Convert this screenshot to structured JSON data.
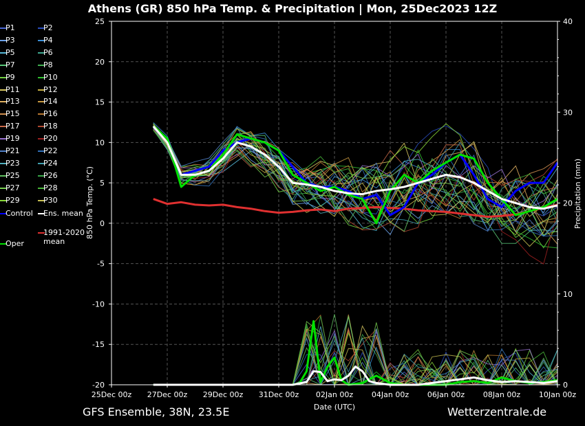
{
  "header": {
    "title": "Athens  (GR)  850 hPa Temp. & Precipitation | Mon, 25Dec2023 12Z"
  },
  "footer": {
    "left": "GFS Ensemble, 38N, 23.5E",
    "right": "Wetterzentrale.de"
  },
  "legend": [
    {
      "label": "P1",
      "color": "#4a68d8"
    },
    {
      "label": "P2",
      "color": "#2a4fc0"
    },
    {
      "label": "P3",
      "color": "#6aa0e8"
    },
    {
      "label": "P4",
      "color": "#3b8fd8"
    },
    {
      "label": "P5",
      "color": "#56b8d8"
    },
    {
      "label": "P6",
      "color": "#3fa890"
    },
    {
      "label": "P7",
      "color": "#58c878"
    },
    {
      "label": "P8",
      "color": "#40b050"
    },
    {
      "label": "P9",
      "color": "#70d040"
    },
    {
      "label": "P10",
      "color": "#30c030"
    },
    {
      "label": "P11",
      "color": "#d8c860"
    },
    {
      "label": "P12",
      "color": "#c8b040"
    },
    {
      "label": "P13",
      "color": "#e0b060"
    },
    {
      "label": "P14",
      "color": "#c89840"
    },
    {
      "label": "P15",
      "color": "#d09050"
    },
    {
      "label": "P16",
      "color": "#b87830"
    },
    {
      "label": "P17",
      "color": "#c86848"
    },
    {
      "label": "P18",
      "color": "#b04830"
    },
    {
      "label": "P19",
      "color": "#9870d0"
    },
    {
      "label": "P20",
      "color": "#a02020"
    },
    {
      "label": "P21",
      "color": "#5080c8"
    },
    {
      "label": "P22",
      "color": "#3070b8"
    },
    {
      "label": "P23",
      "color": "#50b0c0"
    },
    {
      "label": "P24",
      "color": "#40a0b0"
    },
    {
      "label": "P25",
      "color": "#60c060"
    },
    {
      "label": "P26",
      "color": "#38a848"
    },
    {
      "label": "P27",
      "color": "#78d050"
    },
    {
      "label": "P28",
      "color": "#48b838"
    },
    {
      "label": "P29",
      "color": "#88d838"
    },
    {
      "label": "P30",
      "color": "#c8c050"
    },
    {
      "label": "Control",
      "color": "#0000ff"
    },
    {
      "label": "Ens. mean",
      "color": "#ffffff"
    },
    {
      "label": "1991-2020 mean",
      "color": "#e03030"
    },
    {
      "label": "Oper",
      "color": "#00e000"
    }
  ],
  "chart_data": {
    "type": "line",
    "title": "Athens  (GR)  850 hPa Temp. & Precipitation | Mon, 25Dec2023 12Z",
    "xlabel": "Date (UTC)",
    "ylabel": "850 hPa Temp. (°C)",
    "y2label": "Precipitation (mm)",
    "xticks": [
      "25Dec 00z",
      "27Dec 00z",
      "29Dec 00z",
      "31Dec 00z",
      "02Jan 00z",
      "04Jan 00z",
      "06Jan 00z",
      "08Jan 00z",
      "10Jan 00z"
    ],
    "xlim_hours": [
      0,
      384
    ],
    "ylim": [
      -20,
      25
    ],
    "y2lim": [
      0,
      40
    ],
    "yticks": [
      -20,
      -15,
      -10,
      -5,
      0,
      5,
      10,
      15,
      20,
      25
    ],
    "y2ticks": [
      0,
      10,
      20,
      30,
      40
    ],
    "grid": true,
    "series": [
      {
        "name": "Control",
        "axis": "temp",
        "color": "#0000ff",
        "width": 3,
        "x": [
          36,
          48,
          60,
          72,
          84,
          96,
          108,
          120,
          132,
          144,
          156,
          168,
          180,
          192,
          204,
          216,
          228,
          240,
          252,
          264,
          276,
          288,
          300,
          312,
          324,
          336,
          348,
          360,
          372,
          384
        ],
        "y": [
          12,
          10,
          6,
          6.5,
          7,
          9,
          10,
          10.5,
          10,
          9,
          7,
          5,
          4.5,
          4.5,
          4,
          3,
          3.5,
          1,
          2,
          5,
          6,
          7.5,
          8.5,
          6,
          3,
          2,
          4,
          5,
          5,
          7.5
        ]
      },
      {
        "name": "Oper",
        "axis": "temp",
        "color": "#00e000",
        "width": 3,
        "x": [
          36,
          48,
          60,
          72,
          84,
          96,
          108,
          120,
          132,
          144,
          156,
          168,
          180,
          192,
          204,
          216,
          228,
          240,
          252,
          264,
          276,
          288,
          300,
          312,
          324,
          336,
          348,
          360,
          372,
          384
        ],
        "y": [
          12,
          10.5,
          4.5,
          6,
          6.5,
          8.5,
          11,
          10.5,
          10,
          9,
          6,
          5,
          4,
          4.5,
          3.5,
          3,
          0,
          4,
          6,
          5,
          6.5,
          7.5,
          8.5,
          8,
          5,
          3,
          1,
          1.5,
          2,
          3
        ]
      },
      {
        "name": "Ens. mean",
        "axis": "temp",
        "color": "#ffffff",
        "width": 3,
        "x": [
          36,
          48,
          60,
          72,
          84,
          96,
          108,
          120,
          132,
          144,
          156,
          168,
          180,
          192,
          204,
          216,
          228,
          240,
          252,
          264,
          276,
          288,
          300,
          312,
          324,
          336,
          348,
          360,
          372,
          384
        ],
        "y": [
          12,
          10,
          6,
          6,
          6.5,
          8,
          10,
          9.5,
          8.5,
          7,
          5,
          4.8,
          4.5,
          4,
          3.7,
          3.6,
          4,
          4.2,
          4.5,
          5,
          5.5,
          6,
          5.7,
          5,
          4,
          3,
          2.5,
          2,
          1.8,
          2.2
        ]
      },
      {
        "name": "1991-2020 mean",
        "axis": "temp",
        "color": "#e03030",
        "width": 3,
        "x": [
          36,
          48,
          60,
          72,
          84,
          96,
          108,
          120,
          132,
          144,
          156,
          168,
          180,
          192,
          204,
          216,
          228,
          240,
          252,
          264,
          276,
          288,
          300,
          312,
          324,
          336,
          348,
          360,
          372,
          384
        ],
        "y": [
          3,
          2.4,
          2.6,
          2.3,
          2.2,
          2.3,
          2.0,
          1.8,
          1.5,
          1.3,
          1.4,
          1.6,
          1.7,
          1.5,
          1.8,
          1.9,
          2.0,
          1.9,
          1.8,
          1.6,
          1.5,
          1.4,
          1.2,
          1.0,
          0.8,
          0.9,
          1.1,
          1.5,
          1.9,
          2.3
        ]
      },
      {
        "name": "Oper",
        "axis": "precip",
        "color": "#00e000",
        "width": 3,
        "x": [
          36,
          60,
          84,
          108,
          132,
          144,
          156,
          162,
          168,
          174,
          180,
          186,
          192,
          198,
          204,
          216,
          228,
          240,
          252,
          264,
          276,
          288,
          300,
          312,
          324,
          336,
          348,
          360,
          372,
          384
        ],
        "y": [
          0,
          0,
          0,
          0,
          0,
          0,
          0,
          0.2,
          1.5,
          7,
          0.3,
          2,
          3,
          0.5,
          0,
          0.2,
          1,
          0.2,
          0,
          0,
          0,
          0,
          0.3,
          0.4,
          0.2,
          0.8,
          0.4,
          0.2,
          0.3,
          0.5
        ]
      },
      {
        "name": "Ens. mean",
        "axis": "precip",
        "color": "#ffffff",
        "width": 3,
        "x": [
          36,
          60,
          84,
          108,
          132,
          156,
          168,
          174,
          180,
          186,
          192,
          198,
          204,
          210,
          216,
          222,
          228,
          240,
          252,
          264,
          276,
          288,
          300,
          312,
          324,
          336,
          348,
          360,
          372,
          384
        ],
        "y": [
          0,
          0,
          0,
          0,
          0,
          0,
          0.3,
          1.5,
          1.4,
          0.4,
          0.6,
          0.5,
          1,
          2,
          1.5,
          0.4,
          0.2,
          0,
          0,
          0,
          0.2,
          0.4,
          0.6,
          0.8,
          0.5,
          0.3,
          0.4,
          0.3,
          0.2,
          0.4
        ]
      }
    ]
  }
}
